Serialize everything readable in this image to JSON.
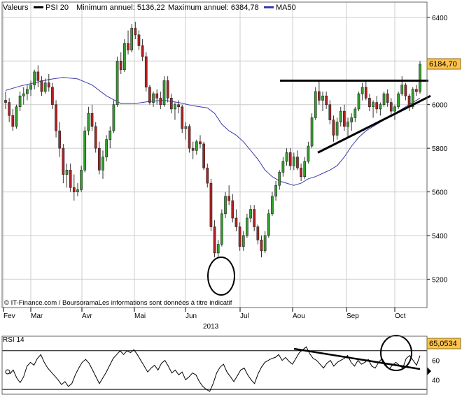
{
  "legend": {
    "valeurs_label": "Valeurs",
    "series_name": "PSI 20",
    "min_label": "Minimum annuel: 5136,22",
    "max_label": "Maximum annuel: 6384,78",
    "ma_name": "MA50"
  },
  "last_price_label": "6184,70",
  "rsi_value_label": "65,0534",
  "credit": "© IT-Finance.com / BoursoramaLes informations sont données à titre indicatif",
  "year_label": "2013",
  "rsi_label": "RSI 14",
  "colors": {
    "up": "#33a02c",
    "down": "#b22222",
    "ma": "#3a3ab0",
    "grid": "#cccccc",
    "label_bg": "#ffc24a"
  },
  "chart_data": [
    {
      "type": "candlestick",
      "title": "PSI 20",
      "x_tick_labels": [
        "Fev",
        "Mar",
        "Avr",
        "Mai",
        "Jun",
        "Jul",
        "Aou",
        "Sep",
        "Oct"
      ],
      "year_label": "2013",
      "y_ticks": [
        5200,
        5400,
        5600,
        5800,
        6000,
        6200,
        6400
      ],
      "ylim": [
        5070,
        6470
      ],
      "grid": true,
      "legend_position": "top-left",
      "last_value": 6184.7,
      "annual_min": 5136.22,
      "annual_max": 6384.78,
      "ohlc": [
        [
          6020,
          6060,
          5980,
          6010
        ],
        [
          6010,
          6030,
          5920,
          5950
        ],
        [
          5950,
          5980,
          5880,
          5900
        ],
        [
          5900,
          6000,
          5890,
          5990
        ],
        [
          5990,
          6060,
          5970,
          6040
        ],
        [
          6040,
          6080,
          6000,
          6050
        ],
        [
          6050,
          6090,
          6020,
          6070
        ],
        [
          6070,
          6110,
          6040,
          6090
        ],
        [
          6090,
          6160,
          6070,
          6150
        ],
        [
          6150,
          6180,
          6080,
          6110
        ],
        [
          6110,
          6130,
          6040,
          6060
        ],
        [
          6060,
          6120,
          6050,
          6100
        ],
        [
          6100,
          6140,
          6060,
          6080
        ],
        [
          6080,
          6100,
          5980,
          6000
        ],
        [
          6000,
          6020,
          5850,
          5880
        ],
        [
          5880,
          5920,
          5760,
          5800
        ],
        [
          5800,
          5820,
          5640,
          5680
        ],
        [
          5680,
          5730,
          5620,
          5700
        ],
        [
          5700,
          5730,
          5600,
          5620
        ],
        [
          5620,
          5680,
          5560,
          5600
        ],
        [
          5600,
          5640,
          5580,
          5610
        ],
        [
          5610,
          5720,
          5600,
          5700
        ],
        [
          5700,
          5900,
          5690,
          5880
        ],
        [
          5880,
          5990,
          5860,
          5960
        ],
        [
          5960,
          6000,
          5880,
          5900
        ],
        [
          5900,
          5920,
          5780,
          5800
        ],
        [
          5800,
          5830,
          5680,
          5700
        ],
        [
          5700,
          5790,
          5660,
          5760
        ],
        [
          5760,
          5860,
          5740,
          5840
        ],
        [
          5840,
          5900,
          5800,
          5880
        ],
        [
          5880,
          6020,
          5870,
          6000
        ],
        [
          6000,
          6220,
          5990,
          6200
        ],
        [
          6200,
          6240,
          6140,
          6160
        ],
        [
          6160,
          6300,
          6150,
          6280
        ],
        [
          6280,
          6340,
          6230,
          6250
        ],
        [
          6250,
          6370,
          6240,
          6350
        ],
        [
          6350,
          6380,
          6300,
          6320
        ],
        [
          6320,
          6340,
          6250,
          6270
        ],
        [
          6270,
          6300,
          6200,
          6220
        ],
        [
          6220,
          6240,
          6060,
          6080
        ],
        [
          6080,
          6090,
          6000,
          6010
        ],
        [
          6010,
          6060,
          5990,
          6050
        ],
        [
          6050,
          6070,
          6000,
          6030
        ],
        [
          6030,
          6060,
          5980,
          6000
        ],
        [
          6000,
          6130,
          5990,
          6110
        ],
        [
          6110,
          6130,
          6010,
          6030
        ],
        [
          6030,
          6050,
          5960,
          5980
        ],
        [
          5980,
          6010,
          5930,
          6000
        ],
        [
          6000,
          6020,
          5960,
          5990
        ],
        [
          5990,
          6000,
          5870,
          5890
        ],
        [
          5890,
          5920,
          5840,
          5900
        ],
        [
          5900,
          5910,
          5780,
          5800
        ],
        [
          5800,
          5830,
          5750,
          5790
        ],
        [
          5790,
          5840,
          5770,
          5830
        ],
        [
          5830,
          5860,
          5800,
          5820
        ],
        [
          5820,
          5830,
          5700,
          5710
        ],
        [
          5710,
          5730,
          5620,
          5640
        ],
        [
          5640,
          5660,
          5420,
          5440
        ],
        [
          5440,
          5470,
          5300,
          5320
        ],
        [
          5320,
          5380,
          5300,
          5360
        ],
        [
          5360,
          5520,
          5350,
          5500
        ],
        [
          5500,
          5600,
          5480,
          5580
        ],
        [
          5580,
          5630,
          5540,
          5560
        ],
        [
          5560,
          5590,
          5460,
          5480
        ],
        [
          5480,
          5520,
          5420,
          5440
        ],
        [
          5440,
          5460,
          5330,
          5350
        ],
        [
          5350,
          5420,
          5330,
          5400
        ],
        [
          5400,
          5500,
          5390,
          5480
        ],
        [
          5480,
          5540,
          5460,
          5520
        ],
        [
          5520,
          5540,
          5420,
          5440
        ],
        [
          5440,
          5450,
          5360,
          5380
        ],
        [
          5380,
          5400,
          5300,
          5330
        ],
        [
          5330,
          5420,
          5320,
          5400
        ],
        [
          5400,
          5520,
          5390,
          5500
        ],
        [
          5500,
          5600,
          5490,
          5580
        ],
        [
          5580,
          5650,
          5560,
          5630
        ],
        [
          5630,
          5700,
          5610,
          5690
        ],
        [
          5690,
          5760,
          5670,
          5740
        ],
        [
          5740,
          5800,
          5720,
          5780
        ],
        [
          5780,
          5800,
          5700,
          5720
        ],
        [
          5720,
          5780,
          5700,
          5760
        ],
        [
          5760,
          5790,
          5700,
          5710
        ],
        [
          5710,
          5730,
          5650,
          5670
        ],
        [
          5670,
          5760,
          5660,
          5740
        ],
        [
          5740,
          5830,
          5730,
          5810
        ],
        [
          5810,
          5960,
          5800,
          5940
        ],
        [
          5940,
          6080,
          5930,
          6060
        ],
        [
          6060,
          6110,
          6000,
          6020
        ],
        [
          6020,
          6060,
          5970,
          6040
        ],
        [
          6040,
          6060,
          5980,
          6000
        ],
        [
          6000,
          6020,
          5910,
          5930
        ],
        [
          5930,
          5950,
          5830,
          5860
        ],
        [
          5860,
          5940,
          5840,
          5920
        ],
        [
          5920,
          5990,
          5900,
          5970
        ],
        [
          5970,
          6000,
          5880,
          5900
        ],
        [
          5900,
          5940,
          5850,
          5920
        ],
        [
          5920,
          5960,
          5880,
          5940
        ],
        [
          5940,
          5990,
          5920,
          5980
        ],
        [
          5980,
          6060,
          5970,
          6050
        ],
        [
          6050,
          6100,
          6020,
          6080
        ],
        [
          6080,
          6110,
          6020,
          6030
        ],
        [
          6030,
          6050,
          5970,
          5990
        ],
        [
          5990,
          6020,
          5940,
          6010
        ],
        [
          6010,
          6040,
          5960,
          5980
        ],
        [
          5980,
          6010,
          5950,
          6000
        ],
        [
          6000,
          6060,
          5990,
          6050
        ],
        [
          6050,
          6070,
          5990,
          6010
        ],
        [
          6010,
          6030,
          5950,
          5970
        ],
        [
          5970,
          6000,
          5930,
          5990
        ],
        [
          5990,
          6060,
          5980,
          6050
        ],
        [
          6050,
          6130,
          6040,
          6090
        ],
        [
          6090,
          6100,
          6020,
          6040
        ],
        [
          6040,
          6050,
          5970,
          5990
        ],
        [
          5990,
          6080,
          5980,
          6070
        ],
        [
          6070,
          6090,
          6040,
          6060
        ],
        [
          6060,
          6200,
          6050,
          6185
        ]
      ],
      "ma50": [
        [
          0,
          6065
        ],
        [
          4,
          6085
        ],
        [
          8,
          6100
        ],
        [
          12,
          6115
        ],
        [
          16,
          6125
        ],
        [
          20,
          6118
        ],
        [
          24,
          6090
        ],
        [
          28,
          6040
        ],
        [
          32,
          6005
        ],
        [
          36,
          6005
        ],
        [
          40,
          6015
        ],
        [
          44,
          6020
        ],
        [
          48,
          6010
        ],
        [
          52,
          5995
        ],
        [
          56,
          5985
        ],
        [
          58,
          5960
        ],
        [
          60,
          5910
        ],
        [
          62,
          5880
        ],
        [
          64,
          5860
        ],
        [
          66,
          5830
        ],
        [
          68,
          5790
        ],
        [
          70,
          5750
        ],
        [
          72,
          5700
        ],
        [
          74,
          5670
        ],
        [
          76,
          5650
        ],
        [
          78,
          5640
        ],
        [
          80,
          5630
        ],
        [
          82,
          5640
        ],
        [
          84,
          5660
        ],
        [
          86,
          5670
        ],
        [
          88,
          5685
        ],
        [
          90,
          5700
        ],
        [
          92,
          5720
        ],
        [
          94,
          5760
        ],
        [
          96,
          5810
        ],
        [
          98,
          5850
        ],
        [
          100,
          5880
        ],
        [
          102,
          5900
        ],
        [
          104,
          5920
        ],
        [
          106,
          5940
        ],
        [
          108,
          5960
        ],
        [
          110,
          5980
        ],
        [
          112,
          6000
        ],
        [
          114,
          6020
        ],
        [
          115,
          6030
        ]
      ],
      "resistance_line": [
        [
          87,
          6110
        ],
        [
          119,
          6110
        ]
      ],
      "support_line": [
        [
          93,
          5780
        ],
        [
          119,
          6045
        ]
      ]
    },
    {
      "type": "line",
      "title": "RSI 14",
      "current_value": 65.0534,
      "y_ticks": [
        40,
        60
      ],
      "ylim": [
        25,
        85
      ],
      "levels": [
        30,
        70
      ],
      "values": [
        46,
        50,
        42,
        37,
        43,
        54,
        58,
        55,
        62,
        66,
        58,
        52,
        48,
        44,
        40,
        35,
        38,
        33,
        36,
        45,
        52,
        58,
        61,
        57,
        50,
        43,
        36,
        42,
        48,
        55,
        62,
        66,
        70,
        66,
        70,
        68,
        71,
        66,
        60,
        54,
        48,
        52,
        55,
        50,
        57,
        60,
        54,
        47,
        50,
        45,
        48,
        40,
        43,
        47,
        45,
        38,
        33,
        30,
        28,
        36,
        47,
        53,
        56,
        48,
        43,
        38,
        44,
        50,
        52,
        45,
        40,
        36,
        46,
        53,
        58,
        60,
        62,
        63,
        66,
        60,
        63,
        59,
        56,
        62,
        68,
        71,
        74,
        67,
        62,
        60,
        56,
        52,
        57,
        60,
        54,
        58,
        60,
        62,
        65,
        58,
        54,
        60,
        56,
        58,
        61,
        54,
        52,
        58,
        62,
        56,
        51,
        55,
        58,
        55,
        52,
        62,
        65,
        60,
        55,
        65
      ],
      "trendline": [
        [
          84,
          72
        ],
        [
          119,
          51
        ]
      ]
    }
  ]
}
